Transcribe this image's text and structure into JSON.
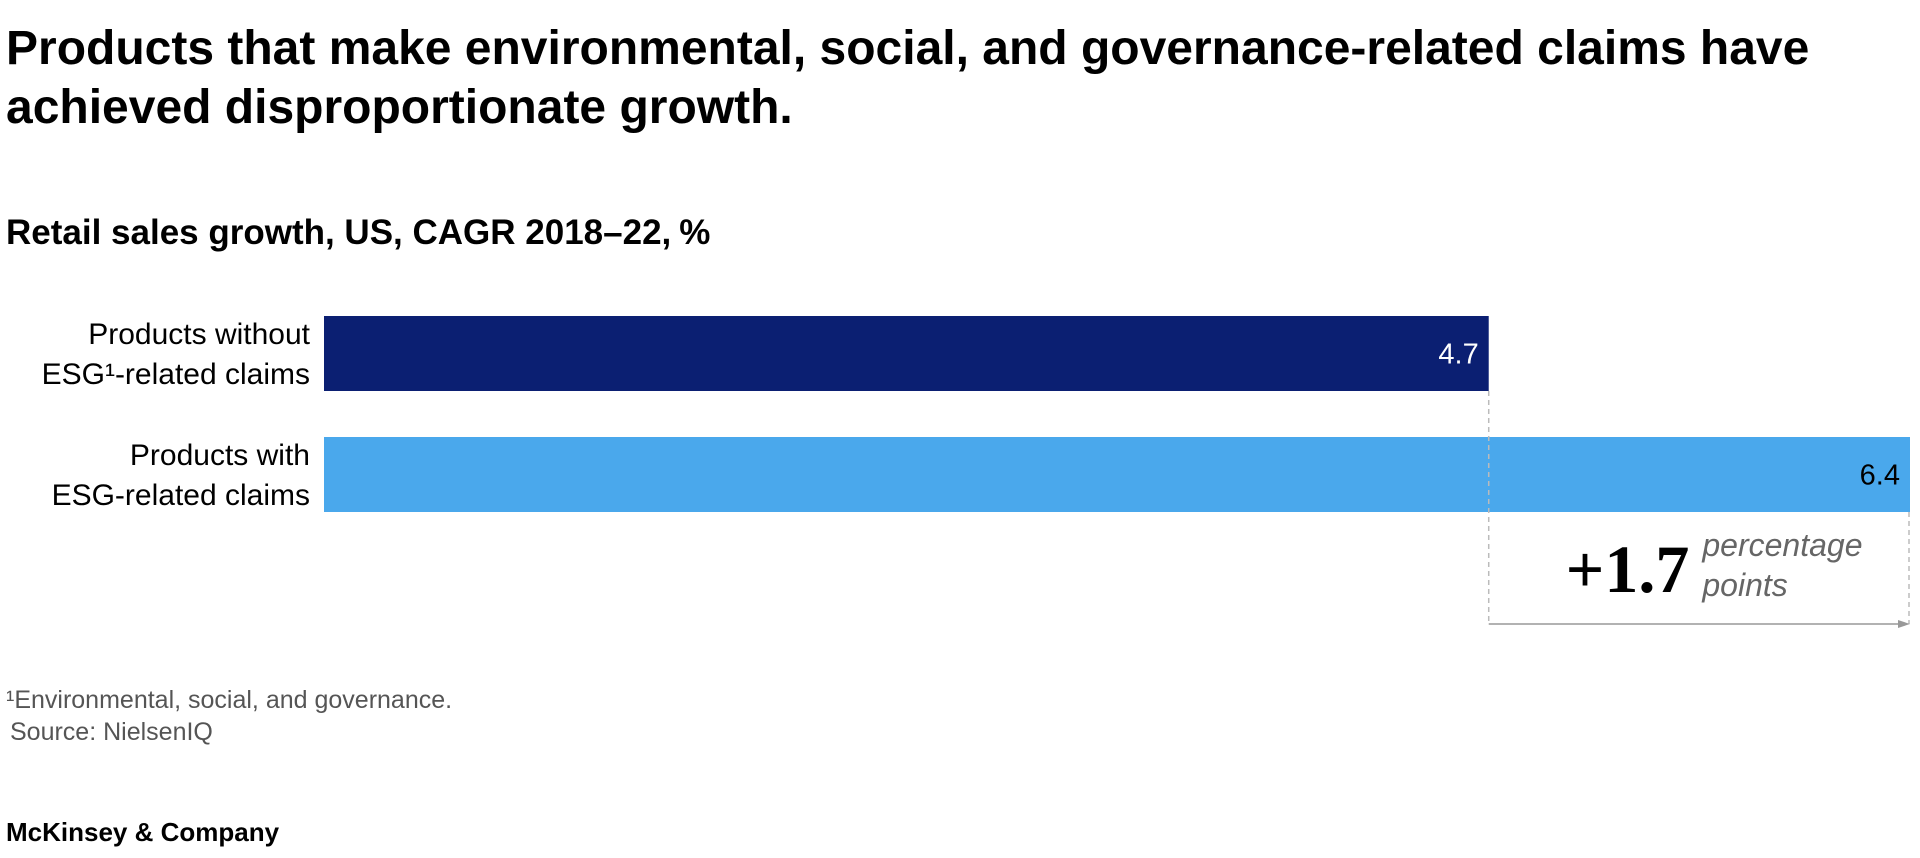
{
  "chart_data": {
    "type": "bar",
    "orientation": "horizontal",
    "title": [
      "Products that make environmental, social, and governance-related claims have",
      "achieved disproportionate growth."
    ],
    "subtitle": "Retail sales growth, US, CAGR 2018–22,",
    "unit": "%",
    "categories": [
      [
        "Products without",
        "ESG¹-related claims"
      ],
      [
        "Products with",
        "ESG-related claims"
      ]
    ],
    "values": [
      4.7,
      6.4
    ],
    "colors": [
      "#0b1f72",
      "#4aa8ec"
    ],
    "value_label_colors": [
      "#ffffff",
      "#000000"
    ],
    "xlim": [
      0,
      6.4
    ],
    "annotation": {
      "text": "+1.7",
      "note": [
        "percentage",
        "points"
      ]
    },
    "footnote": "¹Environmental, social, and governance.",
    "source": "Source: NielsenIQ",
    "brand": "McKinsey & Company"
  }
}
